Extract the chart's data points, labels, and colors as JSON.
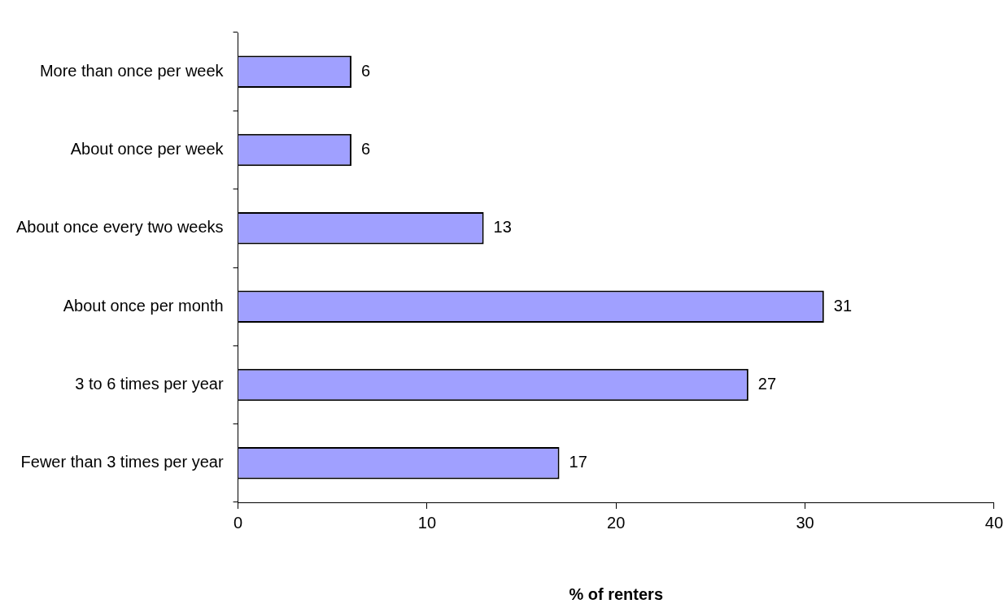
{
  "chart_data": {
    "type": "bar",
    "orientation": "horizontal",
    "xlabel": "% of renters",
    "categories": [
      "More than once per week",
      "About once per week",
      "About once every two weeks",
      "About once per month",
      "3 to 6 times per year",
      "Fewer than 3 times per year"
    ],
    "values": [
      6,
      6,
      13,
      31,
      27,
      17
    ],
    "color": "#a0a0ff",
    "xlim": [
      0,
      40
    ],
    "xticks": [
      0,
      10,
      20,
      30,
      40
    ],
    "grid": false,
    "legend": false,
    "data_labels": true
  }
}
